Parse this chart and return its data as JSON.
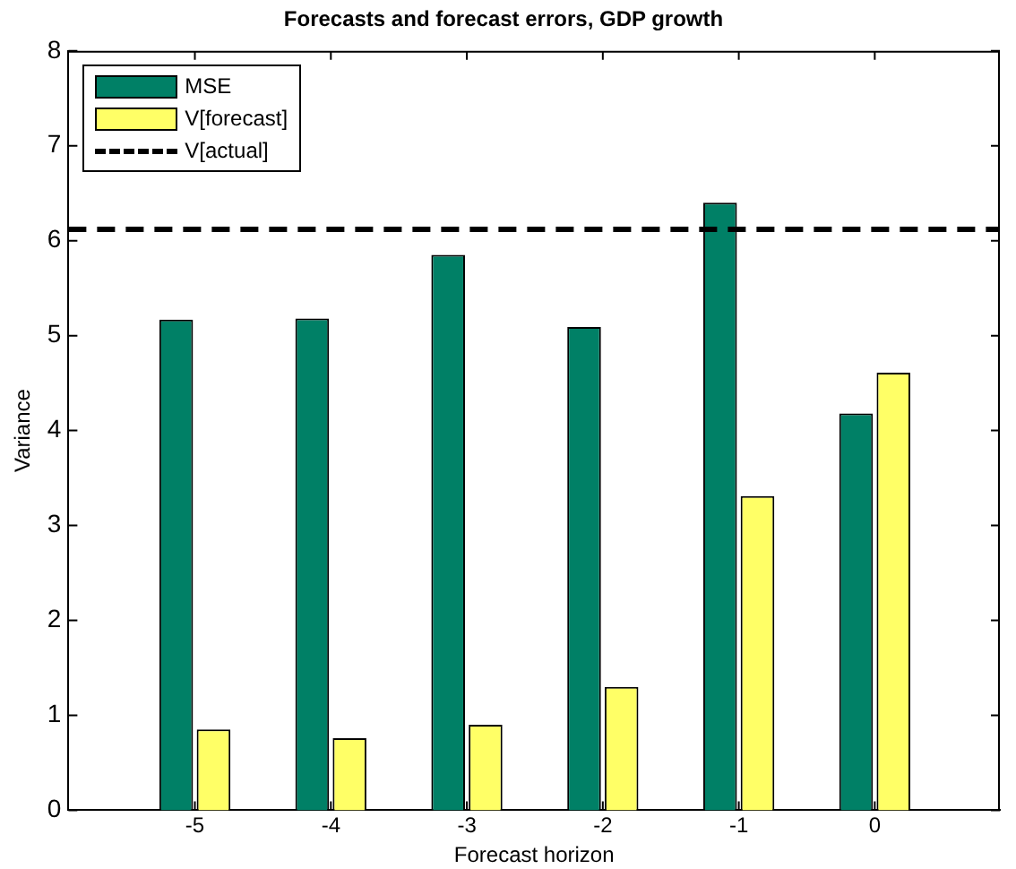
{
  "chart_data": {
    "type": "bar",
    "title": "Forecasts and forecast errors, GDP growth",
    "xlabel": "Forecast horizon",
    "ylabel": "Variance",
    "x": [
      -5,
      -4,
      -3,
      -2,
      -1,
      0
    ],
    "series": [
      {
        "name": "MSE",
        "color": "#008066",
        "values": [
          5.17,
          5.18,
          5.85,
          5.09,
          6.4,
          4.18
        ]
      },
      {
        "name": "V[forecast]",
        "color": "#ffff66",
        "values": [
          0.85,
          0.76,
          0.9,
          1.3,
          3.31,
          4.61
        ]
      }
    ],
    "ref_lines": [
      {
        "axis": "y",
        "value": 6.12,
        "label": "V[actual]",
        "color": "#000000",
        "line_style": "dashed"
      }
    ],
    "xlim": [
      -5.93,
      0.92
    ],
    "xticks": [
      -5,
      -4,
      -3,
      -2,
      -1,
      0
    ],
    "ylim": [
      0,
      8
    ],
    "yticks": [
      0,
      1,
      2,
      3,
      4,
      5,
      6,
      7,
      8
    ],
    "grid": false,
    "legend": "top left"
  }
}
